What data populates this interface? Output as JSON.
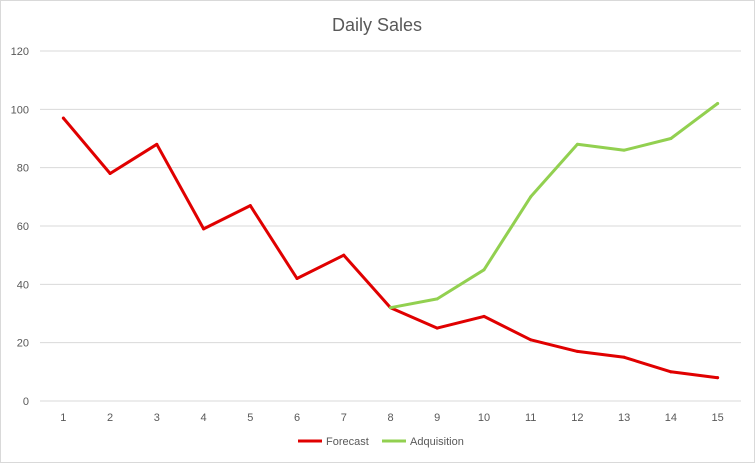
{
  "chart_data": {
    "type": "line",
    "title": "Daily Sales",
    "xlabel": "",
    "ylabel": "",
    "categories": [
      "1",
      "2",
      "3",
      "4",
      "5",
      "6",
      "7",
      "8",
      "9",
      "10",
      "11",
      "12",
      "13",
      "14",
      "15"
    ],
    "ylim": [
      0,
      120
    ],
    "yticks": [
      0,
      20,
      40,
      60,
      80,
      100,
      120
    ],
    "grid": true,
    "legend_position": "bottom",
    "series": [
      {
        "name": "Forecast",
        "color": "#e00000",
        "values": [
          97,
          78,
          88,
          59,
          67,
          42,
          50,
          32,
          25,
          29,
          21,
          17,
          15,
          10,
          8
        ]
      },
      {
        "name": "Adquisition",
        "color": "#92d050",
        "values": [
          null,
          null,
          null,
          null,
          null,
          null,
          null,
          32,
          35,
          45,
          70,
          88,
          86,
          90,
          102
        ]
      }
    ]
  }
}
